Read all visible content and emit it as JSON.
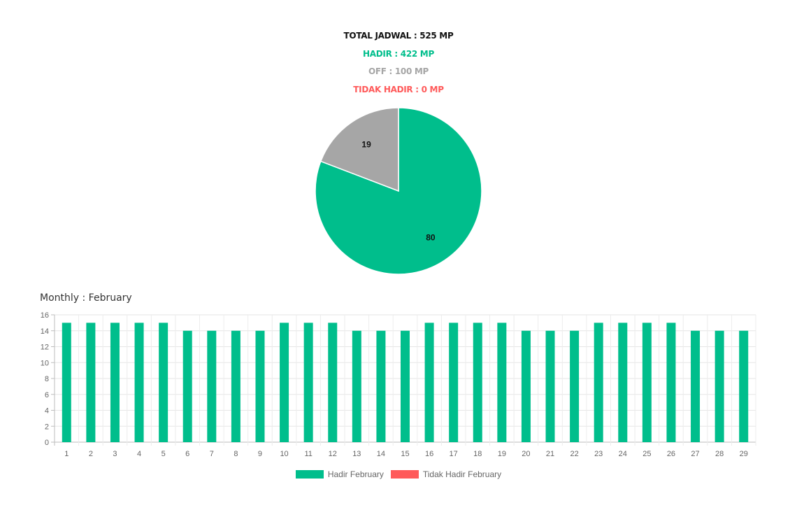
{
  "summary": {
    "total": "TOTAL JADWAL : 525 MP",
    "hadir": "HADIR : 422 MP",
    "off": "OFF : 100 MP",
    "tidak_hadir": "TIDAK HADIR : 0 MP"
  },
  "colors": {
    "hadir": "#00BE8C",
    "off": "#A6A6A6",
    "tidak_hadir": "#FF5A5A",
    "total": "#111111"
  },
  "monthly_title": "Monthly : February",
  "chart_data": [
    {
      "type": "pie",
      "slices": [
        {
          "label": "80",
          "value": 80,
          "color": "#00BE8C"
        },
        {
          "label": "19",
          "value": 19,
          "color": "#A6A6A6"
        }
      ]
    },
    {
      "type": "bar",
      "categories": [
        "1",
        "2",
        "3",
        "4",
        "5",
        "6",
        "7",
        "8",
        "9",
        "10",
        "11",
        "12",
        "13",
        "14",
        "15",
        "16",
        "17",
        "18",
        "19",
        "20",
        "21",
        "22",
        "23",
        "24",
        "25",
        "26",
        "27",
        "28",
        "29"
      ],
      "ylim": [
        0,
        16
      ],
      "yticks": [
        0,
        2,
        4,
        6,
        8,
        10,
        12,
        14,
        16
      ],
      "grid": true,
      "legend_position": "bottom",
      "series": [
        {
          "name": "Hadir February",
          "color": "#00BE8C",
          "values": [
            15,
            15,
            15,
            15,
            15,
            14,
            14,
            14,
            14,
            15,
            15,
            15,
            14,
            14,
            14,
            15,
            15,
            15,
            15,
            14,
            14,
            14,
            15,
            15,
            15,
            15,
            14,
            14,
            14
          ]
        },
        {
          "name": "Tidak Hadir February",
          "color": "#FF5A5A",
          "values": [
            0,
            0,
            0,
            0,
            0,
            0,
            0,
            0,
            0,
            0,
            0,
            0,
            0,
            0,
            0,
            0,
            0,
            0,
            0,
            0,
            0,
            0,
            0,
            0,
            0,
            0,
            0,
            0,
            0
          ]
        }
      ]
    }
  ]
}
